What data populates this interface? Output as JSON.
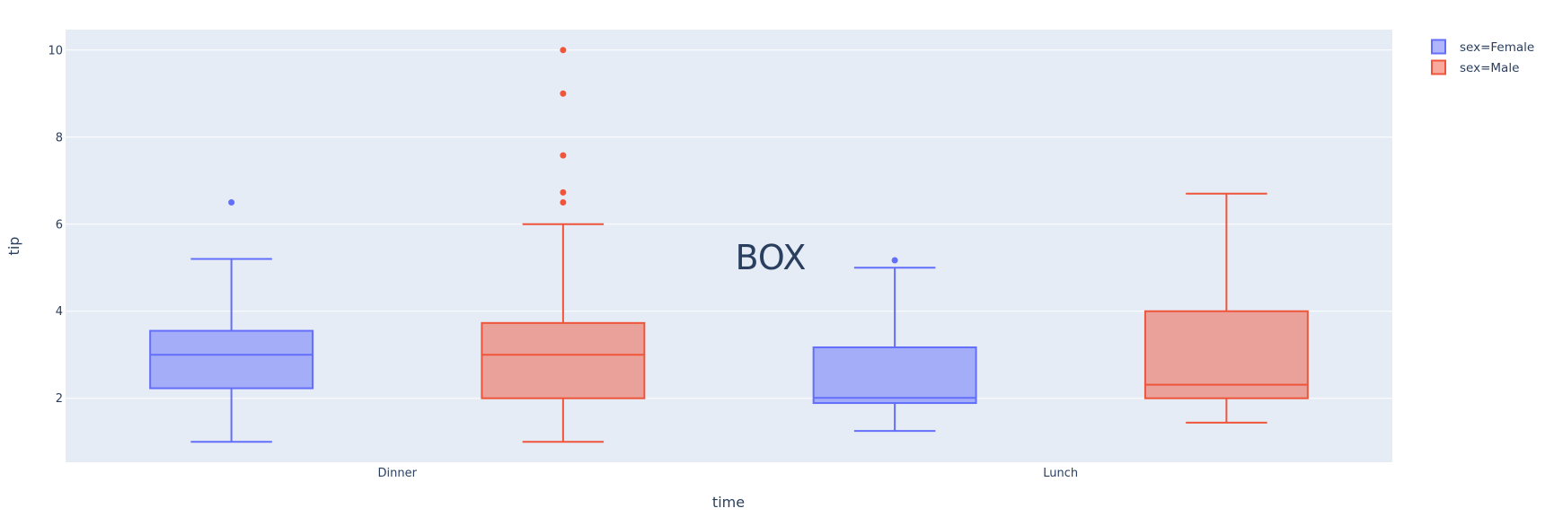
{
  "chart_data": {
    "type": "box",
    "xlabel": "time",
    "ylabel": "tip",
    "categories": [
      "Dinner",
      "Lunch"
    ],
    "ylim": [
      0.53,
      10.47
    ],
    "yticks": [
      2,
      4,
      6,
      8,
      10
    ],
    "grid": true,
    "legend_position": "top-right",
    "annotation": "BOX",
    "series": [
      {
        "name": "sex=Female",
        "color": "#636efa",
        "fill": "rgba(99,110,250,0.5)",
        "boxes": [
          {
            "category": "Dinner",
            "lowerfence": 1.0,
            "q1": 2.23,
            "median": 3.0,
            "q3": 3.55,
            "upperfence": 5.2,
            "outliers": [
              6.5
            ]
          },
          {
            "category": "Lunch",
            "lowerfence": 1.25,
            "q1": 1.89,
            "median": 2.01,
            "q3": 3.17,
            "upperfence": 5.0,
            "outliers": [
              5.17
            ]
          }
        ]
      },
      {
        "name": "sex=Male",
        "color": "#ef553b",
        "fill": "rgba(239,85,59,0.5)",
        "boxes": [
          {
            "category": "Dinner",
            "lowerfence": 1.0,
            "q1": 2.0,
            "median": 3.0,
            "q3": 3.73,
            "upperfence": 6.0,
            "outliers": [
              6.5,
              6.73,
              7.58,
              9.0,
              10.0
            ]
          },
          {
            "category": "Lunch",
            "lowerfence": 1.44,
            "q1": 2.0,
            "median": 2.31,
            "q3": 4.0,
            "upperfence": 6.7,
            "outliers": []
          }
        ]
      }
    ]
  }
}
